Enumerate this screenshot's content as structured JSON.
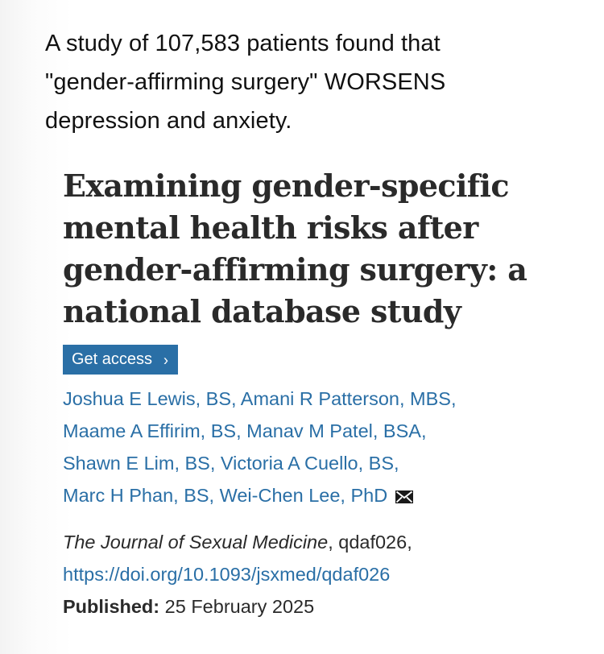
{
  "post": {
    "lines": [
      "A study of 107,583 patients found that",
      "\"gender-affirming surgery\" WORSENS",
      "depression and anxiety."
    ]
  },
  "article": {
    "title_lines": [
      "Examining gender-specific",
      "mental health risks after",
      "gender-affirming surgery: a",
      "national database study"
    ],
    "access_button": {
      "label": "Get access",
      "icon": "chevron-right-icon",
      "color": "#2a6fa6"
    },
    "authors": [
      "Joshua E Lewis, BS",
      "Amani R Patterson, MBS",
      "Maame A Effirim, BS",
      "Manav M Patel, BSA",
      "Shawn E Lim, BS",
      "Victoria A Cuello, BS",
      "Marc H Phan, BS",
      "Wei-Chen Lee, PhD"
    ],
    "author_separator": ",",
    "corresponding_icon": "envelope-icon",
    "link_color": "#2a6fa6",
    "citation": {
      "journal": "The Journal of Sexual Medicine",
      "article_id": ", qdaf026,",
      "doi": "https://doi.org/10.1093/jsxmed/qdaf026",
      "published_label": "Published:",
      "published_date": "25 February 2025"
    }
  }
}
